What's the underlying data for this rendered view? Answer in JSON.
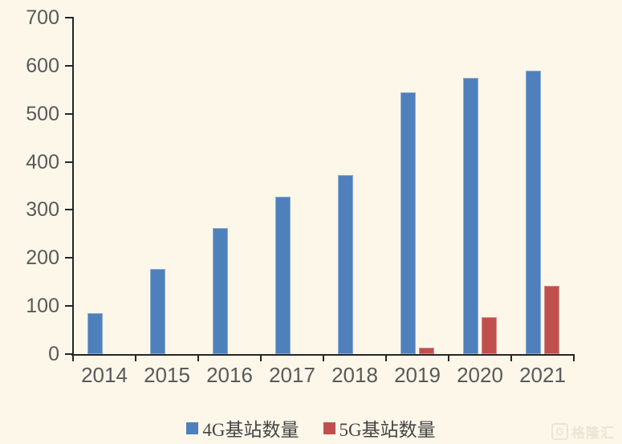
{
  "chart_data": {
    "type": "bar",
    "title": "",
    "categories": [
      "2014",
      "2015",
      "2016",
      "2017",
      "2018",
      "2019",
      "2020",
      "2021"
    ],
    "series": [
      {
        "name": "4G基站数量",
        "color": "#4E80BC",
        "values": [
          85,
          177,
          263,
          328,
          372,
          544,
          575,
          590
        ]
      },
      {
        "name": "5G基站数量",
        "color": "#C0504D",
        "values": [
          null,
          null,
          null,
          null,
          null,
          13,
          77,
          142
        ]
      }
    ],
    "xlabel": "",
    "ylabel": "",
    "ylim": [
      0,
      700
    ],
    "yticks": [
      0,
      100,
      200,
      300,
      400,
      500,
      600,
      700
    ],
    "grid": false,
    "legend_position": "bottom"
  },
  "watermark": {
    "logo_letter": "G",
    "text": "格隆汇"
  },
  "colors": {
    "background": "#FDF7EA",
    "axis": "#262626",
    "tick_label": "#595959",
    "legend_text": "#454545",
    "watermark": "#ECE5D6"
  }
}
